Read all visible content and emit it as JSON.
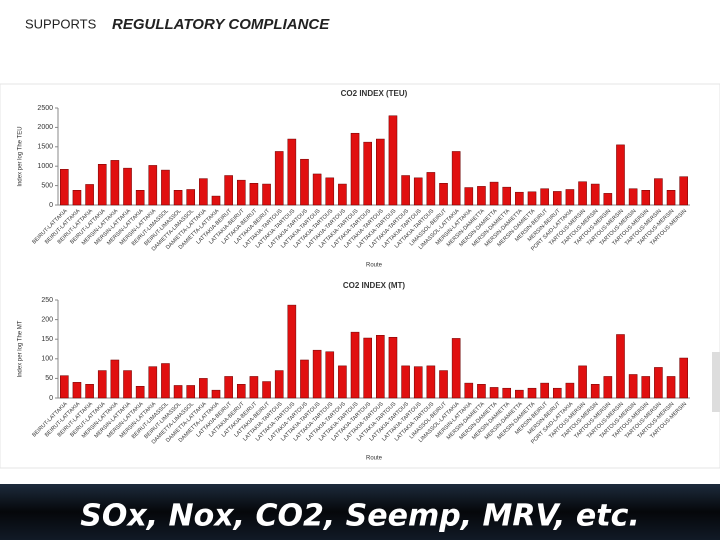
{
  "header": {
    "lead": "SUPPORTS",
    "title": "REGULLATORY  COMPLIANCE"
  },
  "footer": "SOx, Nox, CO2, Seemp, MRV,  etc.",
  "chart_data": [
    {
      "type": "bar",
      "title": "CO2 INDEX (TEU)",
      "x_label": "Route",
      "y_label": "Index per log The TEU",
      "color": "#e01010",
      "categories": [
        "BEIRUT-LATTAKIA",
        "BEIRUT-LATTAKIA",
        "BEIRUT-LATTAKIA",
        "BEIRUT-LATTAKIA",
        "MERSIN-LATTAKIA",
        "MERSIN-LATTAKIA",
        "MERSIN-LATTAKIA",
        "MERSIN-LATTAKIA",
        "BEIRUT-LIMASSOL",
        "BEIRUT-LIMASSOL",
        "DAMIETTA-LIMASSOL",
        "DAMIETTA-LATTAKIA",
        "DAMIETTA-LATTAKIA",
        "LATTAKIA-BEIRUT",
        "LATTAKIA-BEIRUT",
        "LATTAKIA-BEIRUT",
        "LATTAKIA-BEIRUT",
        "LATTAKIA-TARTOUS",
        "LATTAKIA-TARTOUS",
        "LATTAKIA-TARTOUS",
        "LATTAKIA-TARTOUS",
        "LATTAKIA-TARTOUS",
        "LATTAKIA-TARTOUS",
        "LATTAKIA-TARTOUS",
        "LATTAKIA-TARTOUS",
        "LATTAKIA-TARTOUS",
        "LATTAKIA-TARTOUS",
        "LATTAKIA-TARTOUS",
        "LATTAKIA-TARTOUS",
        "LATTAKIA-TARTOUS",
        "LIMASSOL-BEIRUT",
        "LIMASSOL-LATTAKIA",
        "MERSIN-LATTAKIA",
        "MERSIN-DAMIETTA",
        "MERSIN-DAMIETTA",
        "MERSIN-DAMIETTA",
        "MERSIN-DAMIETTA",
        "MERSIN-DAMIETTA",
        "MERSIN-BEIRUT",
        "MERSIN-BEIRUT",
        "PORT SAID-LATTAKIA",
        "TARTOUS-MERSIN",
        "TARTOUS-MERSIN",
        "TARTOUS-MERSIN",
        "TARTOUS-MERSIN",
        "TARTOUS-MERSIN",
        "TARTOUS-MERSIN",
        "TARTOUS-MERSIN",
        "TARTOUS-MERSIN",
        "TARTOUS-MERSIN"
      ],
      "values": [
        920,
        380,
        530,
        1050,
        1150,
        950,
        380,
        1020,
        900,
        380,
        400,
        680,
        230,
        760,
        640,
        560,
        540,
        1380,
        1700,
        1180,
        800,
        700,
        540,
        1850,
        1620,
        1700,
        2300,
        760,
        700,
        840,
        560,
        1380,
        450,
        480,
        590,
        460,
        330,
        340,
        420,
        350,
        400,
        600,
        540,
        300,
        1550,
        420,
        380,
        680,
        380,
        730
      ],
      "ylim": [
        0,
        2500
      ],
      "yticks": [
        0,
        500,
        1000,
        1500,
        2000,
        2500
      ]
    },
    {
      "type": "bar",
      "title": "CO2 INDEX (MT)",
      "x_label": "Route",
      "y_label": "Index per log The MT",
      "color": "#e01010",
      "categories": [
        "BEIRUT-LATTAKIA",
        "BEIRUT-LATTAKIA",
        "BEIRUT-LATTAKIA",
        "BEIRUT-LATTAKIA",
        "MERSIN-LATTAKIA",
        "MERSIN-LATTAKIA",
        "MERSIN-LATTAKIA",
        "MERSIN-LATTAKIA",
        "BEIRUT-LIMASSOL",
        "BEIRUT-LIMASSOL",
        "DAMIETTA-LIMASSOL",
        "DAMIETTA-LATTAKIA",
        "DAMIETTA-LATTAKIA",
        "LATTAKIA-BEIRUT",
        "LATTAKIA-BEIRUT",
        "LATTAKIA-BEIRUT",
        "LATTAKIA-BEIRUT",
        "LATTAKIA-TARTOUS",
        "LATTAKIA-TARTOUS",
        "LATTAKIA-TARTOUS",
        "LATTAKIA-TARTOUS",
        "LATTAKIA-TARTOUS",
        "LATTAKIA-TARTOUS",
        "LATTAKIA-TARTOUS",
        "LATTAKIA-TARTOUS",
        "LATTAKIA-TARTOUS",
        "LATTAKIA-TARTOUS",
        "LATTAKIA-TARTOUS",
        "LATTAKIA-TARTOUS",
        "LATTAKIA-TARTOUS",
        "LIMASSOL-BEIRUT",
        "LIMASSOL-LATTAKIA",
        "MERSIN-LATTAKIA",
        "MERSIN-DAMIETTA",
        "MERSIN-DAMIETTA",
        "MERSIN-DAMIETTA",
        "MERSIN-DAMIETTA",
        "MERSIN-DAMIETTA",
        "MERSIN-BEIRUT",
        "MERSIN-BEIRUT",
        "PORT SAID-LATTAKIA",
        "TARTOUS-MERSIN",
        "TARTOUS-MERSIN",
        "TARTOUS-MERSIN",
        "TARTOUS-MERSIN",
        "TARTOUS-MERSIN",
        "TARTOUS-MERSIN",
        "TARTOUS-MERSIN",
        "TARTOUS-MERSIN",
        "TARTOUS-MERSIN"
      ],
      "values": [
        57,
        40,
        35,
        70,
        97,
        70,
        30,
        80,
        88,
        32,
        32,
        50,
        20,
        55,
        35,
        55,
        42,
        70,
        237,
        97,
        122,
        118,
        82,
        168,
        153,
        160,
        155,
        82,
        80,
        82,
        70,
        152,
        38,
        35,
        27,
        25,
        20,
        25,
        38,
        25,
        38,
        82,
        35,
        55,
        162,
        60,
        55,
        78,
        55,
        102
      ],
      "ylim": [
        0,
        250
      ],
      "yticks": [
        0,
        50,
        100,
        150,
        200,
        250
      ]
    }
  ]
}
